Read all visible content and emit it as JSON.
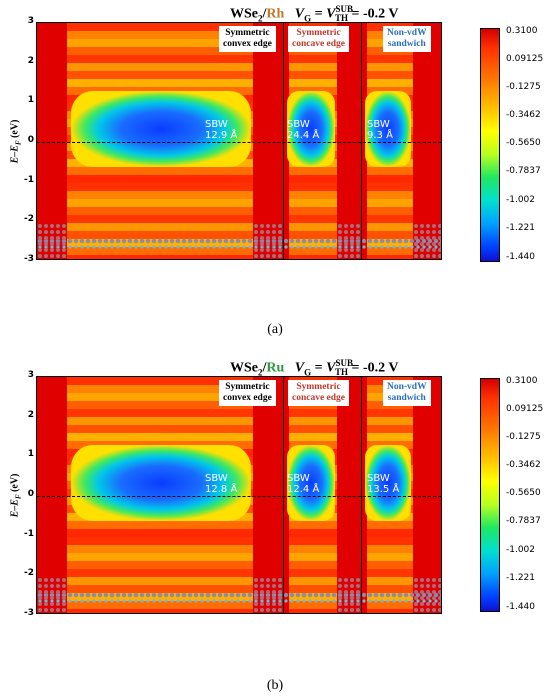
{
  "panels": [
    {
      "id": "a",
      "panel_label": "(a)",
      "title": {
        "material": "WSe",
        "subscript": "2",
        "slash": "/",
        "metal": "Rh",
        "metal_color": "#c07828",
        "vg": "V",
        "vg_sub": "G",
        "eq": " = ",
        "vth": "V",
        "vth_sup": "SUB",
        "vth_sub": "TH",
        "value": " = -0.2 V"
      },
      "ylabel": "E–E",
      "ylabel_sub": "F",
      "ylabel_unit": " (eV)",
      "regions": [
        {
          "label_line1": "Symmetric",
          "label_line2": "convex edge",
          "color": "#000000"
        },
        {
          "label_line1": "Symmetric",
          "label_line2": "concave edge",
          "color": "#c0392b"
        },
        {
          "label_line1": "Non-vdW",
          "label_line2": "sandwich",
          "color": "#2a6fbd"
        }
      ],
      "sbw": [
        {
          "label": "SBW",
          "value": "12.9 Å"
        },
        {
          "label": "SBW",
          "value": "24.4 Å"
        },
        {
          "label": "SBW",
          "value": "9.3 Å"
        }
      ]
    },
    {
      "id": "b",
      "panel_label": "(b)",
      "title": {
        "material": "WSe",
        "subscript": "2",
        "slash": "/",
        "metal": "Ru",
        "metal_color": "#2e9a3e",
        "vg": "V",
        "vg_sub": "G",
        "eq": " = ",
        "vth": "V",
        "vth_sup": "SUB",
        "vth_sub": "TH",
        "value": " = -0.2 V"
      },
      "ylabel": "E–E",
      "ylabel_sub": "F",
      "ylabel_unit": " (eV)",
      "regions": [
        {
          "label_line1": "Symmetric",
          "label_line2": "convex edge",
          "color": "#000000"
        },
        {
          "label_line1": "Symmetric",
          "label_line2": "concave edge",
          "color": "#c0392b"
        },
        {
          "label_line1": "Non-vdW",
          "label_line2": "sandwich",
          "color": "#2a6fbd"
        }
      ],
      "sbw": [
        {
          "label": "SBW",
          "value": "12.8 Å"
        },
        {
          "label": "SBW",
          "value": "12.4 Å"
        },
        {
          "label": "SBW",
          "value": "13.5 Å"
        }
      ]
    }
  ],
  "chart_data": [
    {
      "type": "heatmap",
      "panel": "a",
      "ylim": [
        -3,
        3
      ],
      "yticks": [
        "3",
        "2",
        "1",
        "0",
        "-1",
        "-2",
        "-3"
      ],
      "colorbar_ticks": [
        "0.3100",
        "0.09125",
        "-0.1275",
        "-0.3462",
        "-0.5650",
        "-0.7837",
        "-1.002",
        "-1.221",
        "-1.440"
      ],
      "colorbar_range": [
        -1.44,
        0.31
      ],
      "colormap": [
        "#d40000",
        "#ff7a00",
        "#ffff00",
        "#20e860",
        "#00a0ff",
        "#1010d0"
      ]
    },
    {
      "type": "heatmap",
      "panel": "b",
      "ylim": [
        -3,
        3
      ],
      "yticks": [
        "3",
        "2",
        "1",
        "0",
        "-1",
        "-2",
        "-3"
      ],
      "colorbar_ticks": [
        "0.3100",
        "0.09125",
        "-0.1275",
        "-0.3462",
        "-0.5650",
        "-0.7837",
        "-1.002",
        "-1.221",
        "-1.440"
      ],
      "colorbar_range": [
        -1.44,
        0.31
      ],
      "colormap": [
        "#d40000",
        "#ff7a00",
        "#ffff00",
        "#20e860",
        "#00a0ff",
        "#1010d0"
      ]
    }
  ]
}
